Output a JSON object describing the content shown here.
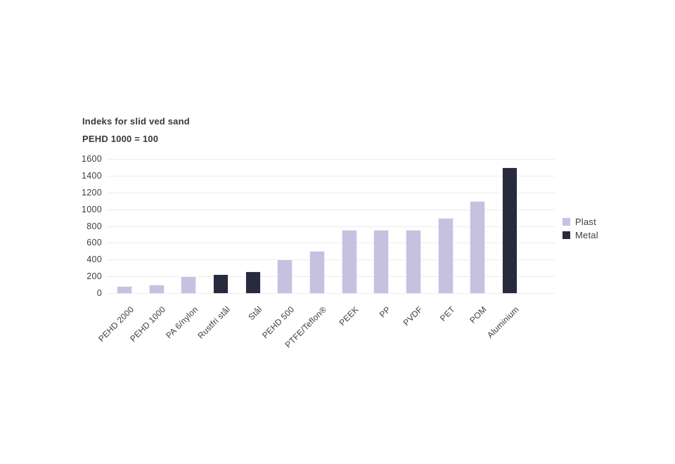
{
  "chart": {
    "title": "Indeks for slid ved sand",
    "subtitle": "PEHD 1000 = 100"
  },
  "legend": {
    "items": [
      {
        "label": "Plast",
        "color": "#c6c1e1"
      },
      {
        "label": "Metal",
        "color": "#282a3e"
      }
    ]
  },
  "chart_data": {
    "type": "bar",
    "title": "Indeks for slid ved sand",
    "subtitle": "PEHD 1000 = 100",
    "categories": [
      "PEHD 2000",
      "PEHD 1000",
      "PA 6/nylon",
      "Rustfri stål",
      "Stål",
      "PEHD 500",
      "PTFE/Teflon®",
      "PEEK",
      "PP",
      "PVDF",
      "PET",
      "POM",
      "Aluminium"
    ],
    "values": [
      80,
      100,
      200,
      230,
      260,
      400,
      500,
      750,
      750,
      750,
      900,
      1100,
      1500
    ],
    "bar_series": [
      "Plast",
      "Plast",
      "Plast",
      "Metal",
      "Metal",
      "Plast",
      "Plast",
      "Plast",
      "Plast",
      "Plast",
      "Plast",
      "Plast",
      "Metal"
    ],
    "series_colors": {
      "Plast": "#c6c1e1",
      "Metal": "#282a3e"
    },
    "xlabel": "",
    "ylabel": "",
    "ylim": [
      0,
      1600
    ],
    "y_ticks": [
      0,
      200,
      400,
      600,
      800,
      1000,
      1200,
      1400,
      1600
    ],
    "grid": "horizontal",
    "legend_position": "right",
    "legend_entries": [
      "Plast",
      "Metal"
    ]
  }
}
